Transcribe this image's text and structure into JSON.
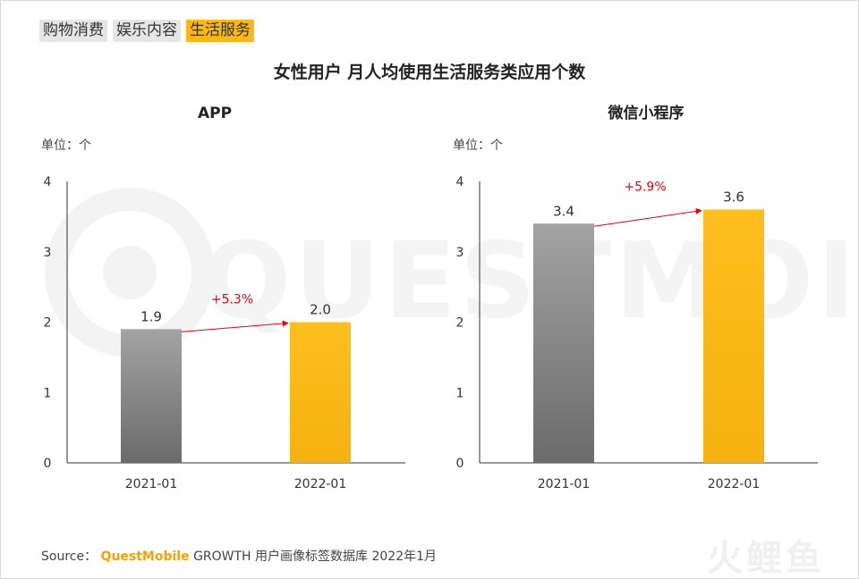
{
  "tabs": [
    {
      "label": "购物消费",
      "active": false
    },
    {
      "label": "娱乐内容",
      "active": false
    },
    {
      "label": "生活服务",
      "active": true
    }
  ],
  "title": "女性用户 月人均使用生活服务类应用个数",
  "colors": {
    "bar_2021": "#8c8c8c",
    "bar_2022": "#fbb818",
    "growth": "#e60012"
  },
  "chart_data": [
    {
      "type": "bar",
      "title": "APP",
      "unit_label": "单位：个",
      "categories": [
        "2021-01",
        "2022-01"
      ],
      "values": [
        1.9,
        2.0
      ],
      "value_labels": [
        "1.9",
        "2.0"
      ],
      "ylim": [
        0,
        4
      ],
      "yticks": [
        0,
        1,
        2,
        3,
        4
      ],
      "growth_label": "+5.3%"
    },
    {
      "type": "bar",
      "title": "微信小程序",
      "unit_label": "单位：个",
      "categories": [
        "2021-01",
        "2022-01"
      ],
      "values": [
        3.4,
        3.6
      ],
      "value_labels": [
        "3.4",
        "3.6"
      ],
      "ylim": [
        0,
        4
      ],
      "yticks": [
        0,
        1,
        2,
        3,
        4
      ],
      "growth_label": "+5.9%"
    }
  ],
  "watermark": "QUESTMOBILE",
  "footer": {
    "prefix": "Source：",
    "brand": "QuestMobile",
    "rest": "GROWTH 用户画像标签数据库 2022年1月"
  },
  "logo_text": "火鲤鱼"
}
